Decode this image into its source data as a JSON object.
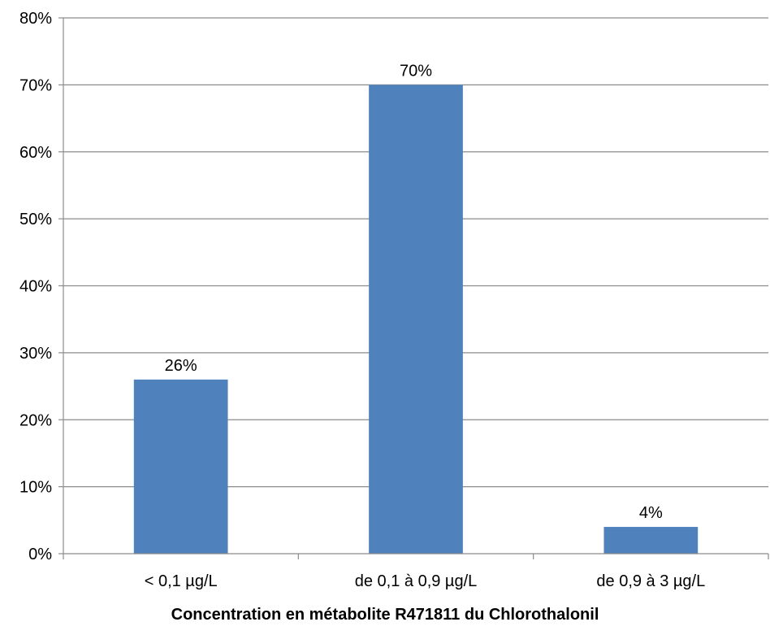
{
  "chart_data": {
    "type": "bar",
    "categories": [
      "< 0,1 µg/L",
      "de 0,1 à 0,9 µg/L",
      "de 0,9 à 3 µg/L"
    ],
    "values": [
      26,
      70,
      4
    ],
    "data_labels": [
      "26%",
      "70%",
      "4%"
    ],
    "ylim": [
      0,
      80
    ],
    "yticks": [
      0,
      10,
      20,
      30,
      40,
      50,
      60,
      70,
      80
    ],
    "ytick_labels": [
      "0%",
      "10%",
      "20%",
      "30%",
      "40%",
      "50%",
      "60%",
      "70%",
      "80%"
    ],
    "xlabel": "Concentration en métabolite R471811 du Chlorothalonil",
    "ylabel": "",
    "title": "",
    "grid": true,
    "bar_color": "#4f81bd",
    "grid_color": "#8c8c8c"
  }
}
